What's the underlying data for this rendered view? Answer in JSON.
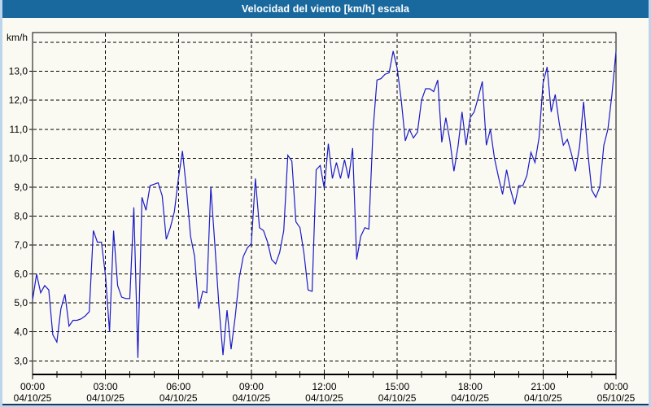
{
  "window": {
    "title": "Velocidad del viento [km/h] escala"
  },
  "colors": {
    "title_bar_bg": "#19699F",
    "title_text": "#FFFFFF",
    "frame": "#BCD5EC",
    "bottom_border": "#123A66",
    "panel_bg": "#FBFAF2",
    "plot_border": "#000000",
    "grid": "#000000",
    "tick_text": "#000000",
    "series_line": "#1A1AC8"
  },
  "chart_data": {
    "type": "line",
    "title": "Velocidad del viento [km/h] escala",
    "legend": "none",
    "grid": "dashed",
    "y_axis": {
      "unit_label": "km/h",
      "range_min": 2.53,
      "range_max": 14.34,
      "ticks": [
        3,
        4,
        5,
        6,
        7,
        8,
        9,
        10,
        11,
        12,
        13
      ],
      "tick_labels": [
        "3,0",
        "4,0",
        "5,0",
        "6,0",
        "7,0",
        "8,0",
        "9,0",
        "10,0",
        "11,0",
        "12,0",
        "13,0"
      ],
      "top_gridline_value": 14
    },
    "x_axis": {
      "total_hours": 24,
      "grid_hours": [
        3,
        6,
        9,
        12,
        15,
        18,
        21
      ],
      "minor_tick_every_hours": 1,
      "major_ticks": [
        {
          "hour": 0,
          "time": "00:00",
          "date": "04/10/25"
        },
        {
          "hour": 3,
          "time": "03:00",
          "date": "04/10/25"
        },
        {
          "hour": 6,
          "time": "06:00",
          "date": "04/10/25"
        },
        {
          "hour": 9,
          "time": "09:00",
          "date": "04/10/25"
        },
        {
          "hour": 12,
          "time": "12:00",
          "date": "04/10/25"
        },
        {
          "hour": 15,
          "time": "15:00",
          "date": "04/10/25"
        },
        {
          "hour": 18,
          "time": "18:00",
          "date": "04/10/25"
        },
        {
          "hour": 21,
          "time": "21:00",
          "date": "04/10/25"
        },
        {
          "hour": 24,
          "time": "00:00",
          "date": "05/10/25"
        }
      ]
    },
    "series": [
      {
        "name": "Velocidad del viento",
        "unit": "km/h",
        "color": "#1A1AC8",
        "start_time": "00:00",
        "interval_minutes": 10,
        "values": [
          5.1,
          6.0,
          5.35,
          5.6,
          5.45,
          3.9,
          3.65,
          4.8,
          5.3,
          4.2,
          4.4,
          4.4,
          4.45,
          4.55,
          4.7,
          7.5,
          7.1,
          7.1,
          5.95,
          4.0,
          7.5,
          5.6,
          5.2,
          5.15,
          5.15,
          8.3,
          3.1,
          8.65,
          8.2,
          9.05,
          9.1,
          9.15,
          8.7,
          7.2,
          7.6,
          8.15,
          9.3,
          10.25,
          8.9,
          7.3,
          6.6,
          4.8,
          5.4,
          5.35,
          9.0,
          7.0,
          4.9,
          3.2,
          4.75,
          3.4,
          4.5,
          5.85,
          6.6,
          6.9,
          7.05,
          9.3,
          7.6,
          7.5,
          7.1,
          6.5,
          6.35,
          6.75,
          7.5,
          10.1,
          9.9,
          7.8,
          7.6,
          6.7,
          5.45,
          5.4,
          9.6,
          9.75,
          8.95,
          10.5,
          9.3,
          9.85,
          9.3,
          9.95,
          9.3,
          10.35,
          6.5,
          7.3,
          7.6,
          7.55,
          10.9,
          12.7,
          12.75,
          12.9,
          12.95,
          13.7,
          13.1,
          12.0,
          10.6,
          11.0,
          10.7,
          10.9,
          12.0,
          12.4,
          12.4,
          12.3,
          12.7,
          10.55,
          11.4,
          10.6,
          9.55,
          10.4,
          11.6,
          10.45,
          11.4,
          11.6,
          12.1,
          12.65,
          10.45,
          11.0,
          10.0,
          9.35,
          8.75,
          9.6,
          8.9,
          8.4,
          9.05,
          9.05,
          9.4,
          10.2,
          9.85,
          10.7,
          12.6,
          13.15,
          11.6,
          12.2,
          11.2,
          10.45,
          10.65,
          10.15,
          9.55,
          10.4,
          11.95,
          10.25,
          8.9,
          8.65,
          9.0,
          10.45,
          11.0,
          12.2,
          13.7
        ]
      }
    ]
  }
}
